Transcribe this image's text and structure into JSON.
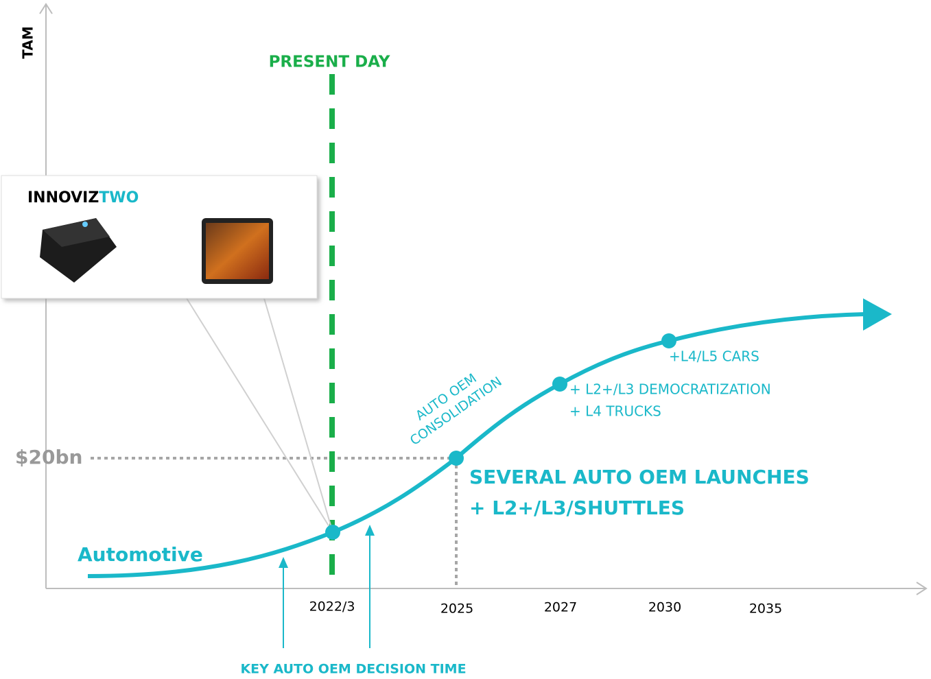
{
  "axes": {
    "y_label": "TAM",
    "x_labels": [
      "2022/3",
      "2025",
      "2027",
      "2030",
      "2035"
    ],
    "y_marker": "$20bn"
  },
  "present_day": "PRESENT DAY",
  "product": {
    "brand": "INNOVIZ",
    "model": "TWO"
  },
  "curve_label": "Automotive",
  "milestones": {
    "consolidation": [
      "AUTO OEM",
      "CONSOLIDATION"
    ],
    "launches": [
      "SEVERAL AUTO OEM LAUNCHES",
      "+ L2+/L3/SHUTTLES"
    ],
    "democratization": [
      "+ L2+/L3 DEMOCRATIZATION",
      "+ L4 TRUCKS"
    ],
    "l4l5": "+L4/L5 CARS"
  },
  "decision_time": "KEY AUTO OEM DECISION TIME"
}
